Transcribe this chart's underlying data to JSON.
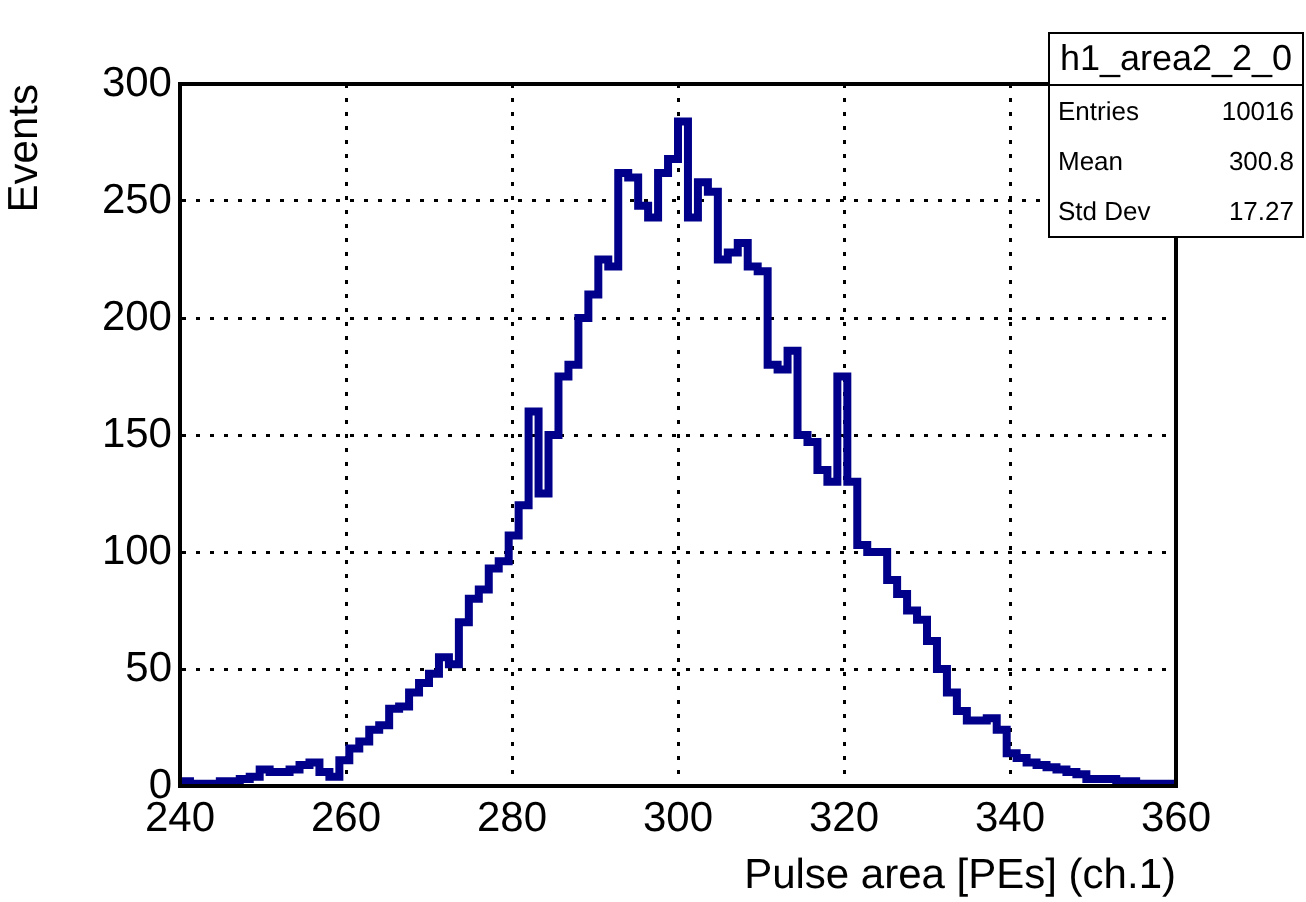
{
  "chart_data": {
    "type": "histogram",
    "xlabel": "Pulse area [PEs] (ch.1)",
    "ylabel": "Events",
    "bins": [
      240,
      241.2,
      242.4,
      243.6,
      244.8,
      246,
      247.2,
      248.4,
      249.6,
      250.8,
      252,
      253.2,
      254.4,
      255.6,
      256.8,
      258,
      259.2,
      260.4,
      261.6,
      262.8,
      264,
      265.2,
      266.4,
      267.6,
      268.8,
      270,
      271.2,
      272.4,
      273.6,
      274.8,
      276,
      277.2,
      278.4,
      279.6,
      280.8,
      282,
      283.2,
      284.4,
      285.6,
      286.8,
      288,
      289.2,
      290.4,
      291.6,
      292.8,
      294,
      295.2,
      296.4,
      297.6,
      298.8,
      300,
      301.2,
      302.4,
      303.6,
      304.8,
      306,
      307.2,
      308.4,
      309.6,
      310.8,
      312,
      313.2,
      314.4,
      315.6,
      316.8,
      318,
      319.2,
      320.4,
      321.6,
      322.8,
      324,
      325.2,
      326.4,
      327.6,
      328.8,
      330,
      331.2,
      332.4,
      333.6,
      334.8,
      336,
      337.2,
      338.4,
      339.6,
      340.8,
      342,
      343.2,
      344.4,
      345.6,
      346.8,
      348,
      349.2,
      350.4,
      351.6,
      352.8,
      354,
      355.2,
      356.4,
      357.6,
      358.8,
      360
    ],
    "values": [
      2,
      1,
      1,
      1,
      2,
      2,
      3,
      4,
      7,
      6,
      6,
      7,
      9,
      10,
      6,
      4,
      11,
      16,
      19,
      24,
      26,
      33,
      34,
      40,
      44,
      48,
      55,
      52,
      70,
      80,
      84,
      93,
      96,
      107,
      120,
      160,
      125,
      150,
      175,
      180,
      200,
      210,
      225,
      222,
      262,
      260,
      248,
      243,
      262,
      268,
      284,
      243,
      258,
      254,
      225,
      228,
      232,
      222,
      220,
      180,
      178,
      186,
      150,
      147,
      135,
      130,
      175,
      130,
      103,
      100,
      100,
      88,
      82,
      75,
      71,
      62,
      50,
      40,
      32,
      28,
      28,
      29,
      24,
      14,
      12,
      10,
      9,
      8,
      7,
      6,
      5,
      3,
      3,
      3,
      2,
      2,
      1,
      1,
      1,
      1
    ],
    "color": "#00008b",
    "xlim": [
      240,
      360
    ],
    "xticks": [
      240,
      260,
      280,
      300,
      320,
      340,
      360
    ],
    "ylim": [
      0,
      300
    ],
    "yticks": [
      0,
      50,
      100,
      150,
      200,
      250,
      300
    ],
    "grid": true,
    "annotations": [
      "h1_area2_2_0",
      "Entries",
      "10016",
      "Mean",
      "300.8",
      "Std Dev",
      "17.27"
    ]
  }
}
